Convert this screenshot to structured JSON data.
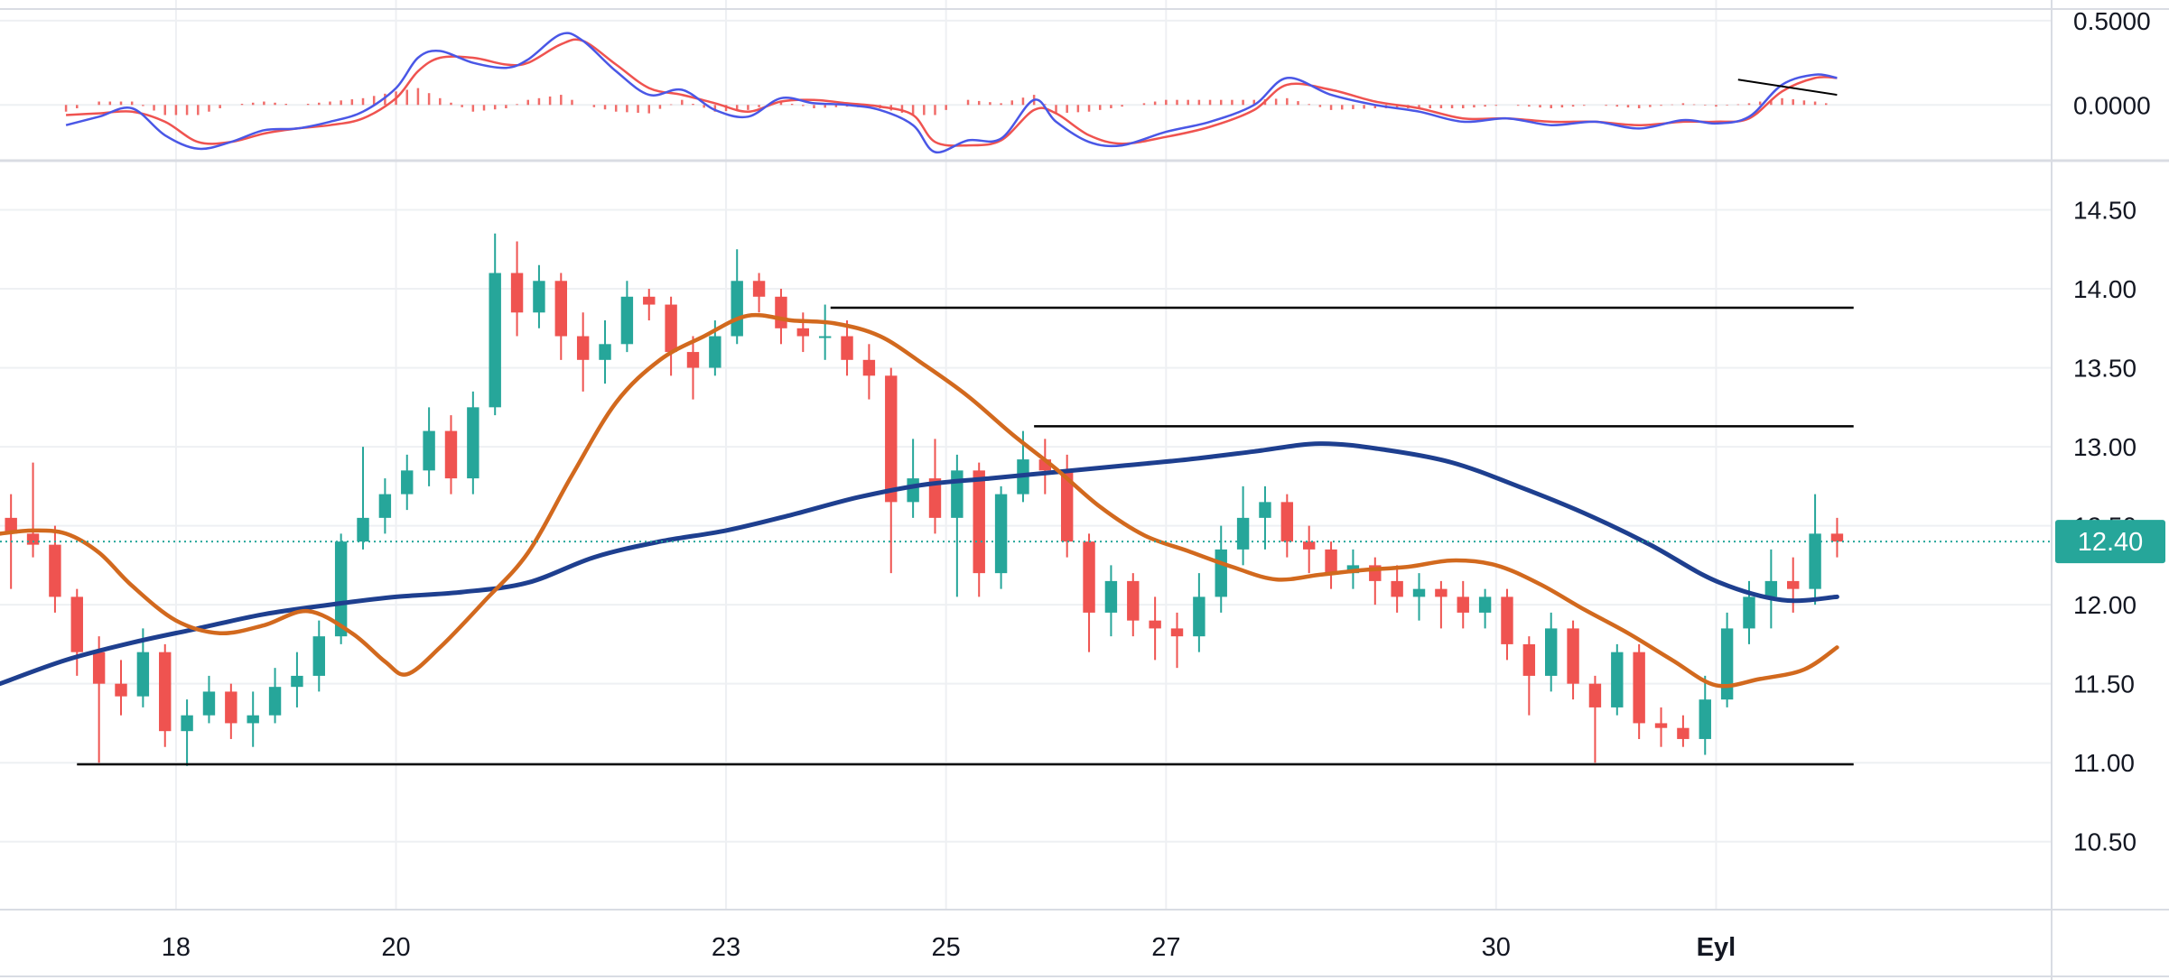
{
  "colors": {
    "background": "#ffffff",
    "grid": "#eef0f3",
    "pane_separator": "#d9dce3",
    "candle_up": "#26a69a",
    "candle_down": "#ef5350",
    "ma_fast": "#d2691e",
    "ma_slow": "#1e3f8f",
    "macd_line": "#4a57e6",
    "signal_line": "#ef5350",
    "histogram": "#ef5350",
    "levels": "#000000",
    "price_tag": "#26a69a"
  },
  "chart_data": [
    {
      "type": "line",
      "pane": "macd",
      "ylim": [
        -0.32,
        0.58
      ],
      "ytick_labels": [
        "0.5000",
        "0.0000"
      ],
      "yticks": [
        0.5,
        0.0
      ],
      "series": [
        {
          "role": "macd",
          "x": [
            17.0,
            17.3,
            17.6,
            17.9,
            18.2,
            18.5,
            18.8,
            19.1,
            19.4,
            19.7,
            20.0,
            20.2,
            20.4,
            20.7,
            21.0,
            21.2,
            21.5,
            21.7,
            22.0,
            22.3,
            22.6,
            22.9,
            23.2,
            23.5,
            23.8,
            24.1,
            24.4,
            24.7,
            24.9,
            25.2,
            25.5,
            25.8,
            26.0,
            26.3,
            26.6,
            27.0,
            27.4,
            27.8,
            28.1,
            28.5,
            28.9,
            29.3,
            29.7,
            30.1,
            30.5,
            30.9,
            31.3,
            31.7,
            32.0,
            32.3,
            32.6,
            32.9,
            33.1
          ],
          "values": [
            -0.12,
            -0.07,
            -0.02,
            -0.18,
            -0.26,
            -0.22,
            -0.15,
            -0.14,
            -0.1,
            -0.04,
            0.1,
            0.28,
            0.32,
            0.25,
            0.22,
            0.27,
            0.42,
            0.38,
            0.2,
            0.06,
            0.09,
            -0.03,
            -0.07,
            0.04,
            0.01,
            0.0,
            -0.03,
            -0.12,
            -0.28,
            -0.21,
            -0.2,
            0.03,
            -0.1,
            -0.22,
            -0.24,
            -0.16,
            -0.1,
            0.0,
            0.16,
            0.06,
            0.0,
            -0.04,
            -0.1,
            -0.08,
            -0.12,
            -0.1,
            -0.14,
            -0.09,
            -0.11,
            -0.07,
            0.12,
            0.18,
            0.16
          ]
        },
        {
          "role": "signal",
          "x": [
            17.0,
            17.3,
            17.6,
            17.9,
            18.2,
            18.5,
            18.8,
            19.1,
            19.4,
            19.7,
            20.0,
            20.2,
            20.4,
            20.7,
            21.0,
            21.2,
            21.5,
            21.7,
            22.0,
            22.3,
            22.6,
            22.9,
            23.2,
            23.5,
            23.8,
            24.1,
            24.4,
            24.7,
            24.9,
            25.2,
            25.5,
            25.8,
            26.0,
            26.3,
            26.6,
            27.0,
            27.4,
            27.8,
            28.1,
            28.5,
            28.9,
            29.3,
            29.7,
            30.1,
            30.5,
            30.9,
            31.3,
            31.7,
            32.0,
            32.3,
            32.6,
            32.9,
            33.1
          ],
          "values": [
            -0.06,
            -0.05,
            -0.04,
            -0.1,
            -0.22,
            -0.22,
            -0.17,
            -0.14,
            -0.12,
            -0.08,
            0.04,
            0.2,
            0.28,
            0.28,
            0.24,
            0.25,
            0.36,
            0.38,
            0.24,
            0.1,
            0.06,
            0.01,
            -0.04,
            0.02,
            0.03,
            0.01,
            -0.01,
            -0.06,
            -0.22,
            -0.24,
            -0.21,
            -0.03,
            -0.05,
            -0.18,
            -0.23,
            -0.19,
            -0.13,
            -0.03,
            0.12,
            0.09,
            0.02,
            -0.02,
            -0.08,
            -0.08,
            -0.1,
            -0.1,
            -0.12,
            -0.1,
            -0.1,
            -0.08,
            0.08,
            0.16,
            0.16
          ]
        },
        {
          "role": "histogram",
          "x": [
            17.0,
            17.3,
            17.6,
            17.9,
            18.2,
            18.5,
            18.8,
            19.1,
            19.4,
            19.7,
            20.0,
            20.2,
            20.4,
            20.7,
            21.0,
            21.2,
            21.5,
            21.7,
            22.0,
            22.3,
            22.6,
            22.9,
            23.2,
            23.5,
            23.8,
            24.1,
            24.4,
            24.7,
            24.9,
            25.2,
            25.5,
            25.8,
            26.0,
            26.3,
            26.6,
            27.0,
            27.4,
            27.8,
            28.1,
            28.5,
            28.9,
            29.3,
            29.7,
            30.1,
            30.5,
            30.9,
            31.3,
            31.7,
            32.0,
            32.3,
            32.6,
            32.9,
            33.1
          ],
          "values": [
            -0.04,
            0.02,
            0.02,
            -0.06,
            -0.06,
            0.0,
            0.02,
            0.0,
            0.02,
            0.04,
            0.08,
            0.1,
            0.04,
            -0.04,
            -0.02,
            0.03,
            0.06,
            0.0,
            -0.04,
            -0.05,
            0.03,
            -0.04,
            -0.03,
            0.02,
            -0.02,
            -0.01,
            -0.02,
            -0.06,
            -0.06,
            0.03,
            0.01,
            0.06,
            -0.05,
            -0.04,
            -0.01,
            0.03,
            0.03,
            0.03,
            0.04,
            -0.03,
            -0.02,
            -0.02,
            -0.02,
            0.0,
            -0.02,
            0.0,
            -0.02,
            0.01,
            -0.01,
            0.01,
            0.04,
            0.02,
            0.0
          ]
        },
        {
          "role": "trendline",
          "x": [
            32.2,
            33.1
          ],
          "values": [
            0.15,
            0.06
          ]
        }
      ]
    },
    {
      "type": "line",
      "pane": "price",
      "ylim": [
        10.07,
        14.8
      ],
      "ytick_labels": [
        "14.50",
        "14.00",
        "13.50",
        "13.00",
        "12.50",
        "12.00",
        "11.50",
        "11.00",
        "10.50"
      ],
      "yticks": [
        14.5,
        14.0,
        13.5,
        13.0,
        12.5,
        12.0,
        11.5,
        11.0,
        10.5
      ],
      "xlim": [
        16.4,
        35.05
      ],
      "xtick_labels": [
        "18",
        "20",
        "23",
        "25",
        "27",
        "30",
        "Eyl"
      ],
      "xticks": [
        18,
        20,
        23,
        25,
        27,
        30,
        32
      ],
      "current_price": "12.40",
      "current_price_value": 12.4,
      "candles": {
        "x": [
          16.5,
          16.7,
          16.9,
          17.1,
          17.3,
          17.5,
          17.7,
          17.9,
          18.1,
          18.3,
          18.5,
          18.7,
          18.9,
          19.1,
          19.3,
          19.5,
          19.7,
          19.9,
          20.1,
          20.3,
          20.5,
          20.7,
          20.9,
          21.1,
          21.3,
          21.5,
          21.7,
          21.9,
          22.1,
          22.3,
          22.5,
          22.7,
          22.9,
          23.1,
          23.3,
          23.5,
          23.7,
          23.9,
          24.1,
          24.3,
          24.5,
          24.7,
          24.9,
          25.1,
          25.3,
          25.5,
          25.7,
          25.9,
          26.1,
          26.3,
          26.5,
          26.7,
          26.9,
          27.1,
          27.3,
          27.5,
          27.7,
          27.9,
          28.1,
          28.3,
          28.5,
          28.7,
          28.9,
          29.1,
          29.3,
          29.5,
          29.7,
          29.9,
          30.1,
          30.3,
          30.5,
          30.7,
          30.9,
          31.1,
          31.3,
          31.5,
          31.7,
          31.9,
          32.1,
          32.3,
          32.5,
          32.7,
          32.9,
          33.1
        ],
        "open": [
          12.55,
          12.45,
          12.38,
          12.05,
          11.7,
          11.5,
          11.42,
          11.7,
          11.2,
          11.3,
          11.45,
          11.25,
          11.3,
          11.48,
          11.55,
          11.8,
          12.4,
          12.55,
          12.7,
          12.85,
          13.1,
          12.8,
          13.25,
          14.1,
          13.85,
          14.05,
          13.7,
          13.55,
          13.65,
          13.95,
          13.9,
          13.6,
          13.5,
          13.7,
          14.05,
          13.95,
          13.75,
          13.7,
          13.7,
          13.55,
          13.45,
          12.65,
          12.8,
          12.55,
          12.85,
          12.2,
          12.7,
          12.92,
          12.85,
          12.4,
          11.95,
          12.15,
          11.9,
          11.85,
          11.8,
          12.05,
          12.35,
          12.55,
          12.65,
          12.4,
          12.35,
          12.2,
          12.25,
          12.15,
          12.05,
          12.1,
          12.05,
          11.95,
          12.05,
          11.75,
          11.55,
          11.85,
          11.5,
          11.35,
          11.7,
          11.25,
          11.22,
          11.15,
          11.4,
          11.85,
          12.05,
          12.15,
          12.1,
          12.45
        ],
        "close": [
          12.45,
          12.38,
          12.05,
          11.7,
          11.5,
          11.42,
          11.7,
          11.2,
          11.3,
          11.45,
          11.25,
          11.3,
          11.48,
          11.55,
          11.8,
          12.4,
          12.55,
          12.7,
          12.85,
          13.1,
          12.8,
          13.25,
          14.1,
          13.85,
          14.05,
          13.7,
          13.55,
          13.65,
          13.95,
          13.9,
          13.6,
          13.5,
          13.7,
          14.05,
          13.95,
          13.75,
          13.7,
          13.7,
          13.55,
          13.45,
          12.65,
          12.8,
          12.55,
          12.85,
          12.2,
          12.7,
          12.92,
          12.85,
          12.4,
          11.95,
          12.15,
          11.9,
          11.85,
          11.8,
          12.05,
          12.35,
          12.55,
          12.65,
          12.4,
          12.35,
          12.2,
          12.25,
          12.15,
          12.05,
          12.1,
          12.05,
          11.95,
          12.05,
          11.75,
          11.55,
          11.85,
          11.5,
          11.35,
          11.7,
          11.25,
          11.22,
          11.15,
          11.4,
          11.85,
          12.05,
          12.15,
          12.1,
          12.45,
          12.4
        ],
        "high": [
          12.7,
          12.9,
          12.5,
          12.1,
          11.8,
          11.65,
          11.85,
          11.75,
          11.4,
          11.55,
          11.5,
          11.45,
          11.6,
          11.7,
          11.9,
          12.45,
          13.0,
          12.8,
          12.95,
          13.25,
          13.2,
          13.35,
          14.35,
          14.3,
          14.15,
          14.1,
          13.85,
          13.8,
          14.05,
          14.0,
          13.95,
          13.7,
          13.8,
          14.25,
          14.1,
          14.0,
          13.85,
          13.9,
          13.8,
          13.65,
          13.5,
          13.05,
          13.05,
          12.95,
          12.9,
          12.75,
          13.1,
          13.05,
          12.95,
          12.45,
          12.25,
          12.2,
          12.05,
          11.95,
          12.2,
          12.5,
          12.75,
          12.75,
          12.7,
          12.5,
          12.4,
          12.35,
          12.3,
          12.25,
          12.2,
          12.15,
          12.15,
          12.1,
          12.1,
          11.8,
          11.95,
          11.9,
          11.55,
          11.75,
          11.75,
          11.35,
          11.3,
          11.55,
          11.95,
          12.15,
          12.35,
          12.3,
          12.7,
          12.55
        ],
        "low": [
          12.1,
          12.3,
          11.95,
          11.55,
          11.0,
          11.3,
          11.35,
          11.1,
          10.98,
          11.25,
          11.15,
          11.1,
          11.25,
          11.35,
          11.45,
          11.75,
          12.35,
          12.45,
          12.6,
          12.75,
          12.7,
          12.7,
          13.2,
          13.7,
          13.75,
          13.55,
          13.35,
          13.4,
          13.6,
          13.8,
          13.45,
          13.3,
          13.45,
          13.65,
          13.85,
          13.65,
          13.6,
          13.55,
          13.45,
          13.3,
          12.2,
          12.55,
          12.45,
          12.05,
          12.05,
          12.1,
          12.65,
          12.7,
          12.3,
          11.7,
          11.8,
          11.8,
          11.65,
          11.6,
          11.7,
          11.95,
          12.25,
          12.35,
          12.3,
          12.2,
          12.1,
          12.1,
          12.0,
          11.95,
          11.9,
          11.85,
          11.85,
          11.85,
          11.65,
          11.3,
          11.45,
          11.4,
          11.0,
          11.3,
          11.15,
          11.1,
          11.1,
          11.05,
          11.35,
          11.75,
          11.85,
          11.95,
          12.0,
          12.3
        ]
      },
      "series": [
        {
          "role": "ma_fast",
          "x": [
            16.4,
            16.7,
            17.0,
            17.3,
            17.6,
            18.0,
            18.4,
            18.8,
            19.2,
            19.6,
            19.9,
            20.1,
            20.4,
            20.8,
            21.2,
            21.6,
            22.0,
            22.4,
            22.8,
            23.2,
            23.6,
            24.0,
            24.4,
            24.8,
            25.2,
            25.6,
            26.0,
            26.4,
            26.8,
            27.2,
            27.6,
            28.0,
            28.4,
            28.8,
            29.2,
            29.6,
            30.0,
            30.4,
            30.8,
            31.2,
            31.6,
            32.0,
            32.4,
            32.8,
            33.1
          ],
          "values": [
            12.45,
            12.47,
            12.45,
            12.33,
            12.12,
            11.9,
            11.82,
            11.87,
            11.96,
            11.82,
            11.64,
            11.56,
            11.73,
            12.02,
            12.33,
            12.82,
            13.28,
            13.55,
            13.7,
            13.83,
            13.8,
            13.78,
            13.7,
            13.52,
            13.32,
            13.08,
            12.86,
            12.62,
            12.44,
            12.34,
            12.24,
            12.16,
            12.19,
            12.22,
            12.24,
            12.28,
            12.25,
            12.13,
            11.97,
            11.82,
            11.65,
            11.49,
            11.53,
            11.59,
            11.73
          ]
        },
        {
          "role": "ma_slow",
          "x": [
            16.4,
            17.0,
            17.6,
            18.2,
            18.8,
            19.4,
            20.0,
            20.6,
            21.2,
            21.8,
            22.4,
            23.0,
            23.6,
            24.2,
            24.8,
            25.4,
            26.0,
            26.6,
            27.2,
            27.8,
            28.4,
            29.0,
            29.6,
            30.2,
            30.8,
            31.4,
            32.0,
            32.6,
            33.1
          ],
          "values": [
            11.5,
            11.65,
            11.76,
            11.85,
            11.94,
            12.0,
            12.05,
            12.08,
            12.14,
            12.3,
            12.4,
            12.47,
            12.57,
            12.68,
            12.76,
            12.8,
            12.84,
            12.88,
            12.92,
            12.97,
            13.02,
            12.98,
            12.9,
            12.75,
            12.58,
            12.38,
            12.15,
            12.03,
            12.05
          ]
        },
        {
          "role": "level",
          "x": [
            17.1,
            33.25
          ],
          "values": [
            10.99,
            10.99
          ]
        },
        {
          "role": "level",
          "x": [
            23.95,
            33.25
          ],
          "values": [
            13.88,
            13.88
          ]
        },
        {
          "role": "level",
          "x": [
            25.8,
            33.25
          ],
          "values": [
            13.13,
            13.13
          ]
        }
      ]
    }
  ]
}
